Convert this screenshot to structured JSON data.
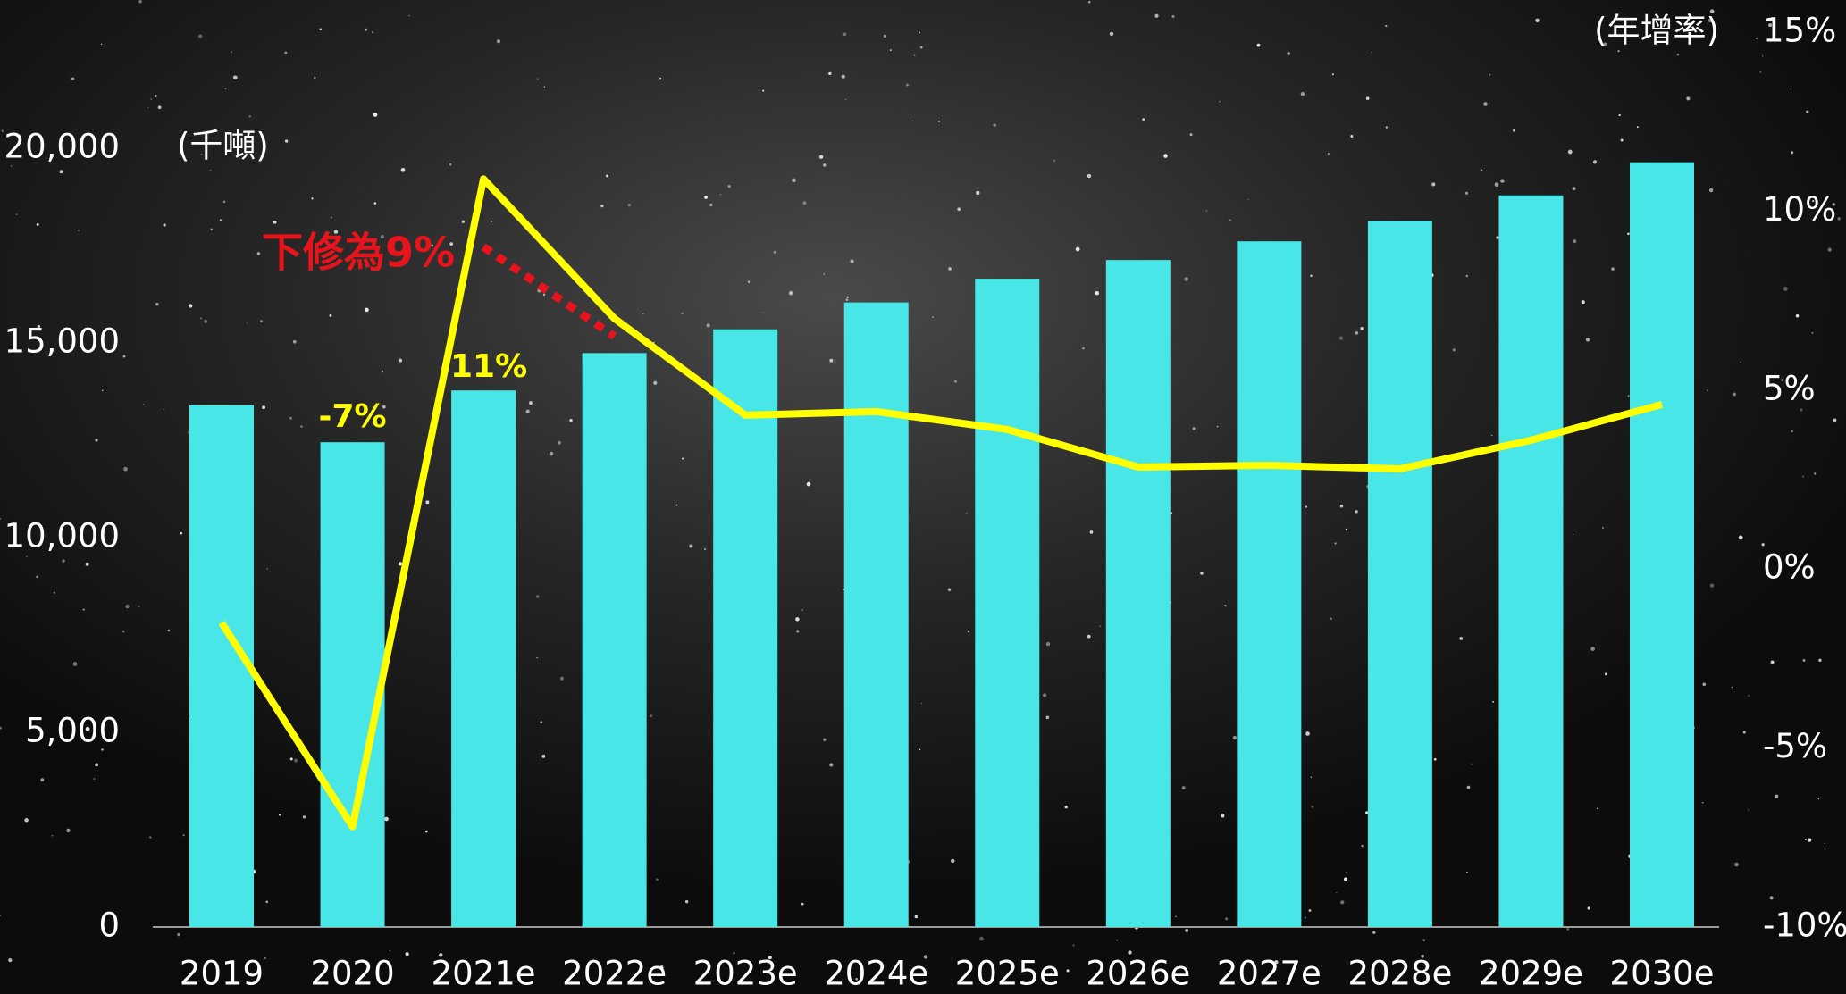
{
  "chart_data": {
    "type": "bar",
    "y_unit_label": "(千噸)",
    "y2_unit_label": "(年增率)",
    "categories": [
      "2019",
      "2020",
      "2021e",
      "2022e",
      "2023e",
      "2024e",
      "2025e",
      "2026e",
      "2027e",
      "2028e",
      "2029e",
      "2030e"
    ],
    "series": [
      {
        "type": "bar",
        "axis": "y",
        "color": "#48e6e6",
        "values": [
          13400,
          12450,
          13780,
          14740,
          15350,
          16040,
          16650,
          17130,
          17610,
          18130,
          18790,
          19640
        ]
      },
      {
        "type": "line",
        "axis": "y2",
        "color": "#ffff00",
        "values": [
          -1.5,
          -7.2,
          10.9,
          7.0,
          4.3,
          4.4,
          3.9,
          2.85,
          2.9,
          2.8,
          3.6,
          4.6
        ],
        "value_labels": [
          null,
          "-7%",
          "11%",
          null,
          null,
          null,
          null,
          null,
          null,
          null,
          null,
          null
        ]
      },
      {
        "type": "line",
        "axis": "y2",
        "color": "#e8141c",
        "dashed": true,
        "values": [
          null,
          null,
          9,
          6.5,
          null,
          null,
          null,
          null,
          null,
          null,
          null,
          null
        ]
      }
    ],
    "annotation": "下修為9%",
    "ylim": [
      0,
      20000
    ],
    "yticks": [
      0,
      {
        "value": 5000,
        "label": "5,000"
      },
      {
        "value": 10000,
        "label": "10,000"
      },
      {
        "value": 15000,
        "label": "15,000"
      },
      {
        "value": 20000,
        "label": "20,000"
      }
    ],
    "y2lim": [
      -10,
      15
    ],
    "y2ticks": [
      {
        "value": -10,
        "label": "-10%"
      },
      {
        "value": -5,
        "label": "-5%"
      },
      {
        "value": 0,
        "label": "0%"
      },
      {
        "value": 5,
        "label": "5%"
      },
      {
        "value": 10,
        "label": "10%"
      },
      {
        "value": 15,
        "label": "15%"
      }
    ],
    "grid": false
  }
}
